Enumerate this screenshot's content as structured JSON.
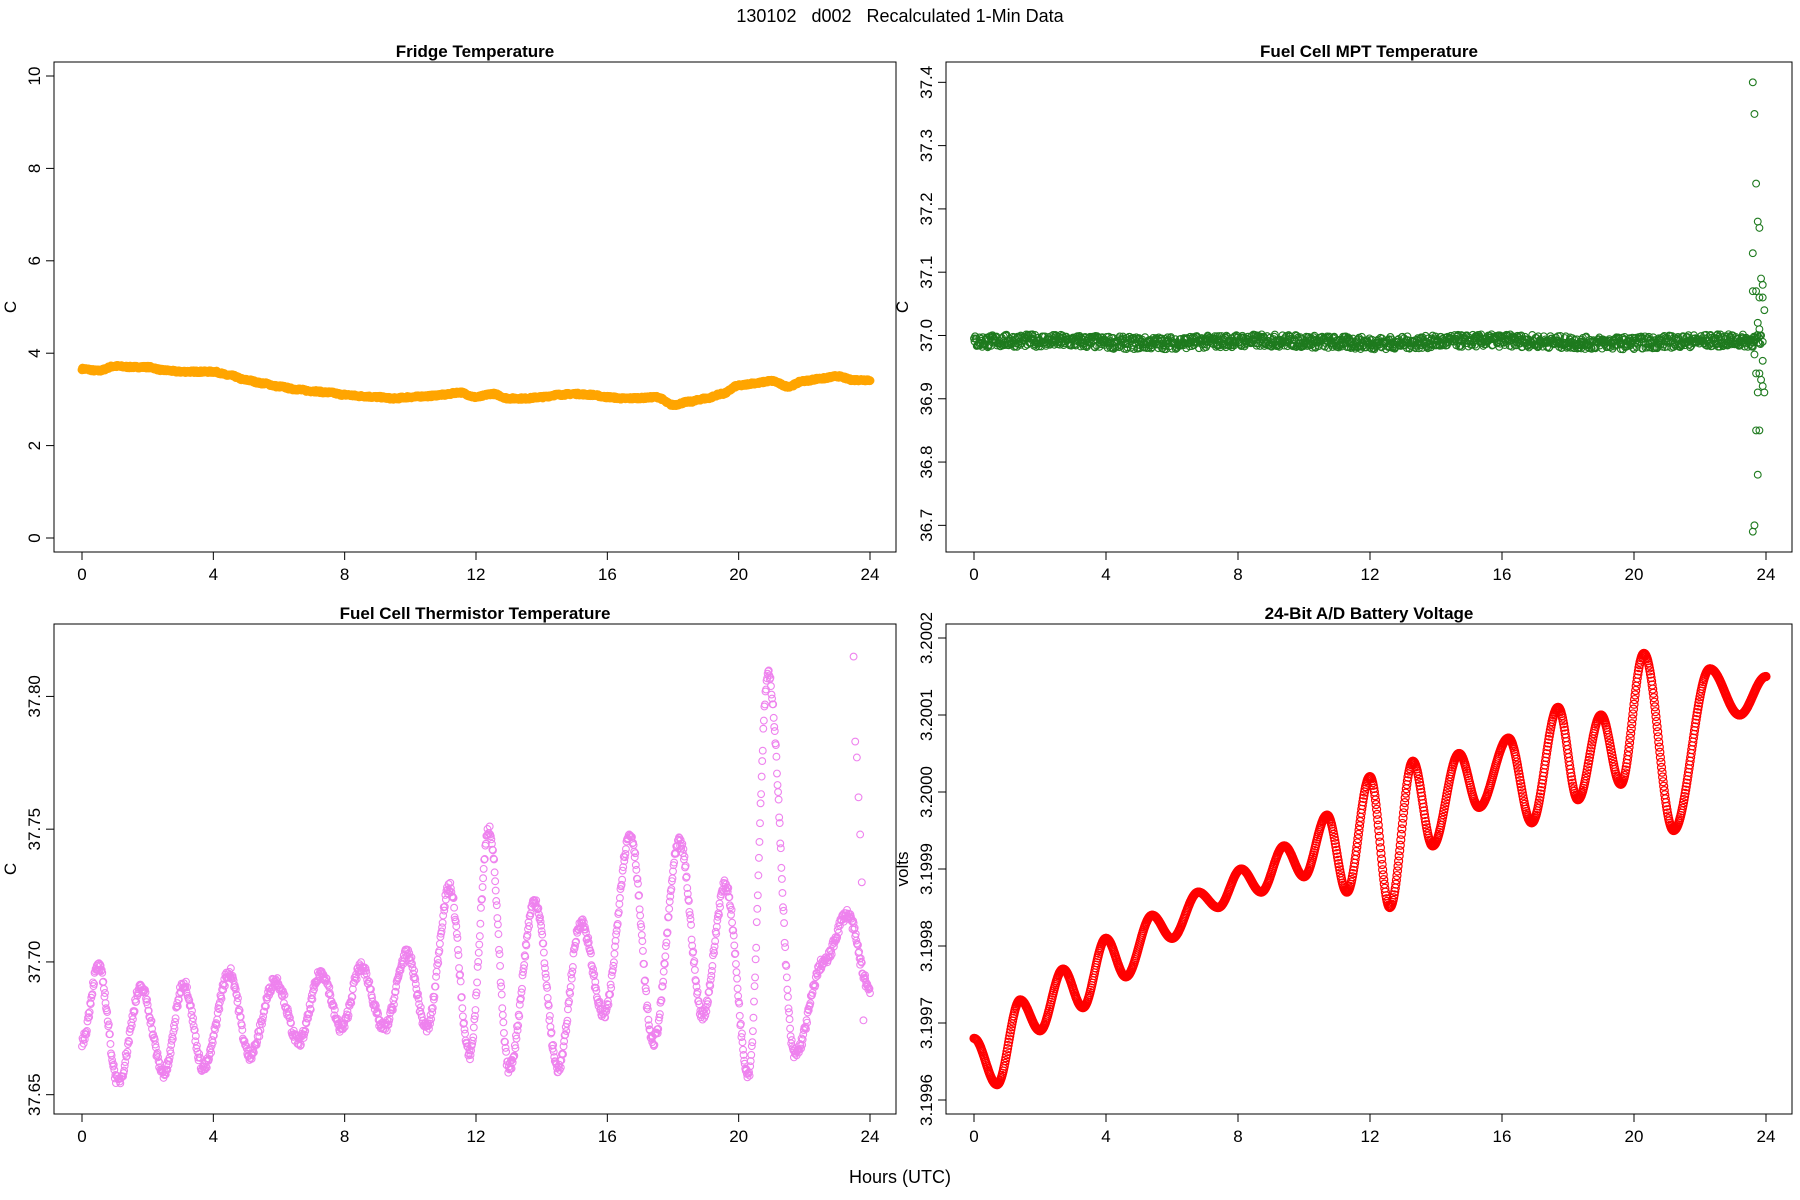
{
  "page": {
    "title": "130102   d002   Recalculated 1-Min Data",
    "xlabel": "Hours (UTC)"
  },
  "chart_data": [
    {
      "type": "line",
      "title": "Fridge Temperature",
      "ylabel": "C",
      "xlim": [
        0,
        24
      ],
      "ylim": [
        0,
        10
      ],
      "xticks": [
        0,
        4,
        8,
        12,
        16,
        20,
        24
      ],
      "yticks": [
        0,
        2,
        4,
        6,
        8,
        10
      ],
      "ytick_labels": [
        "0",
        "2",
        "4",
        "6",
        "8",
        "10"
      ],
      "color": "#FFA500",
      "series": [
        {
          "x": [
            0,
            0.5,
            1,
            1.5,
            2,
            2.5,
            3,
            3.5,
            4,
            4.5,
            5,
            5.5,
            6,
            6.5,
            7,
            7.5,
            8,
            8.5,
            9,
            9.5,
            10,
            10.5,
            11,
            11.5,
            12,
            12.5,
            13,
            13.5,
            14,
            14.5,
            15,
            15.5,
            16,
            16.5,
            17,
            17.5,
            18,
            18.5,
            19,
            19.5,
            20,
            20.5,
            21,
            21.5,
            22,
            22.5,
            23,
            23.5,
            24
          ],
          "values": [
            3.66,
            3.62,
            3.72,
            3.7,
            3.7,
            3.63,
            3.6,
            3.6,
            3.6,
            3.52,
            3.42,
            3.35,
            3.28,
            3.22,
            3.18,
            3.15,
            3.1,
            3.07,
            3.05,
            3.02,
            3.05,
            3.07,
            3.1,
            3.15,
            3.05,
            3.12,
            3.02,
            3.02,
            3.05,
            3.1,
            3.12,
            3.1,
            3.05,
            3.02,
            3.03,
            3.05,
            2.88,
            2.95,
            3.02,
            3.12,
            3.3,
            3.35,
            3.4,
            3.28,
            3.4,
            3.45,
            3.5,
            3.42,
            3.42
          ]
        }
      ]
    },
    {
      "type": "scatter",
      "title": "Fuel Cell MPT Temperature",
      "ylabel": "C",
      "xlim": [
        0,
        24
      ],
      "ylim": [
        36.68,
        37.41
      ],
      "xticks": [
        0,
        4,
        8,
        12,
        16,
        20,
        24
      ],
      "yticks": [
        36.7,
        36.8,
        36.9,
        37.0,
        37.1,
        37.2,
        37.3,
        37.4
      ],
      "ytick_labels": [
        "36.7",
        "36.8",
        "36.9",
        "37.0",
        "37.1",
        "37.2",
        "37.3",
        "37.4"
      ],
      "color": "#1E7A1E",
      "series": [
        {
          "base": {
            "x_start": 0,
            "x_end": 23.8,
            "y": 36.99,
            "noise": 0.01
          },
          "outliers": {
            "x": [
              23.6,
              23.65,
              23.7,
              23.6,
              23.75,
              23.8,
              23.85,
              23.9,
              23.7,
              23.8,
              23.9,
              23.95,
              23.75,
              23.8,
              23.85,
              23.9,
              23.65,
              23.7,
              23.8,
              23.85,
              23.9,
              23.95,
              23.75,
              23.8,
              23.7,
              23.75,
              23.65,
              23.6,
              23.6,
              23.9
            ],
            "values": [
              37.4,
              37.35,
              37.24,
              37.13,
              37.18,
              37.17,
              37.09,
              37.08,
              37.07,
              37.06,
              37.06,
              37.04,
              37.02,
              37.01,
              37.0,
              36.99,
              36.97,
              36.94,
              36.94,
              36.93,
              36.92,
              36.91,
              36.91,
              36.85,
              36.85,
              36.78,
              36.7,
              36.69,
              37.07,
              36.96
            ]
          }
        }
      ]
    },
    {
      "type": "scatter",
      "title": "Fuel Cell Thermistor Temperature",
      "ylabel": "C",
      "xlim": [
        0,
        24
      ],
      "ylim": [
        37.648,
        37.822
      ],
      "xticks": [
        0,
        4,
        8,
        12,
        16,
        20,
        24
      ],
      "yticks": [
        37.65,
        37.7,
        37.75,
        37.8
      ],
      "ytick_labels": [
        "37.65",
        "37.70",
        "37.75",
        "37.80"
      ],
      "color": "#EE82EE",
      "series": [
        {
          "x": [
            0,
            0.5,
            1.1,
            1.8,
            2.5,
            3.1,
            3.7,
            4.5,
            5.1,
            5.9,
            6.6,
            7.3,
            7.9,
            8.5,
            9.2,
            9.9,
            10.5,
            11.2,
            11.8,
            12.4,
            13.0,
            13.8,
            14.5,
            15.2,
            15.9,
            16.7,
            17.4,
            18.2,
            18.9,
            19.6,
            20.3,
            20.9,
            21.7,
            22.6,
            23.3,
            24
          ],
          "values": [
            37.67,
            37.698,
            37.655,
            37.69,
            37.658,
            37.692,
            37.66,
            37.696,
            37.665,
            37.693,
            37.67,
            37.696,
            37.675,
            37.698,
            37.675,
            37.703,
            37.675,
            37.728,
            37.665,
            37.75,
            37.66,
            37.723,
            37.66,
            37.715,
            37.68,
            37.748,
            37.67,
            37.745,
            37.68,
            37.729,
            37.658,
            37.808,
            37.665,
            37.7,
            37.718,
            37.69
          ]
        }
      ],
      "outliers": {
        "x": [
          23.5,
          23.55,
          23.6,
          23.65,
          23.7,
          23.75,
          23.8,
          23.85
        ],
        "values": [
          37.815,
          37.783,
          37.777,
          37.762,
          37.748,
          37.73,
          37.678,
          37.695
        ]
      }
    },
    {
      "type": "scatter",
      "title": "24-Bit A/D Battery Voltage",
      "ylabel": "volts",
      "xlim": [
        0,
        24
      ],
      "ylim": [
        3.1996,
        3.2002
      ],
      "xticks": [
        0,
        4,
        8,
        12,
        16,
        20,
        24
      ],
      "yticks": [
        3.1996,
        3.1997,
        3.1998,
        3.1999,
        3.2,
        3.2001,
        3.2002
      ],
      "ytick_labels": [
        "3.1996",
        "3.1997",
        "3.1998",
        "3.1999",
        "3.2000",
        "3.2001",
        "3.2002"
      ],
      "color": "#FF0000",
      "series": [
        {
          "x": [
            0,
            0.7,
            1.4,
            2.0,
            2.7,
            3.3,
            4.0,
            4.6,
            5.4,
            6.0,
            6.8,
            7.4,
            8.1,
            8.7,
            9.4,
            10.0,
            10.7,
            11.3,
            12.0,
            12.6,
            13.3,
            13.9,
            14.7,
            15.3,
            16.2,
            16.9,
            17.7,
            18.3,
            19.0,
            19.6,
            20.3,
            21.2,
            22.3,
            23.2,
            24
          ],
          "values": [
            3.19968,
            3.19962,
            3.19973,
            3.19969,
            3.19977,
            3.19972,
            3.19981,
            3.19976,
            3.19984,
            3.19981,
            3.19987,
            3.19985,
            3.1999,
            3.19987,
            3.19993,
            3.19989,
            3.19997,
            3.19987,
            3.20002,
            3.19985,
            3.20004,
            3.19993,
            3.20005,
            3.19998,
            3.20007,
            3.19996,
            3.20011,
            3.19999,
            3.2001,
            3.20001,
            3.20018,
            3.19995,
            3.20016,
            3.2001,
            3.20015
          ]
        }
      ]
    }
  ]
}
